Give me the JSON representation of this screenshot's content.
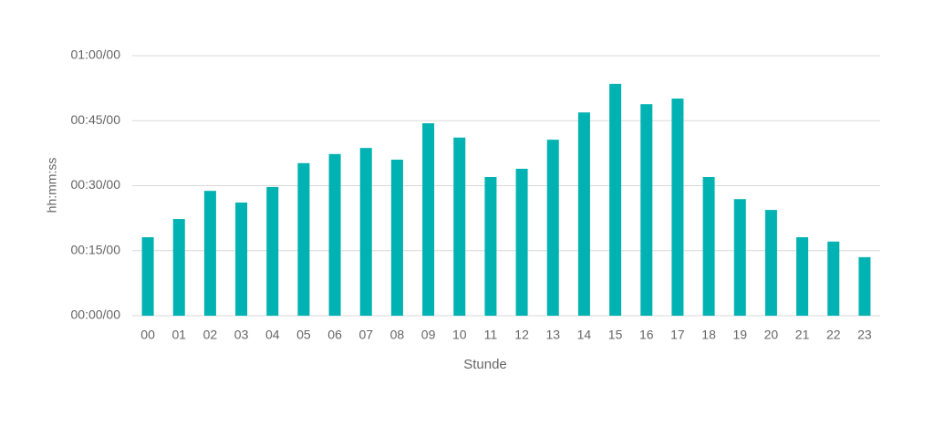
{
  "chart_data": {
    "type": "bar",
    "x_label": "Stunde",
    "y_label": "hh:mm:ss",
    "categories": [
      "00",
      "01",
      "02",
      "03",
      "04",
      "05",
      "06",
      "07",
      "08",
      "09",
      "10",
      "11",
      "12",
      "13",
      "14",
      "15",
      "16",
      "17",
      "18",
      "19",
      "20",
      "21",
      "22",
      "23"
    ],
    "values": [
      18.1,
      22.3,
      28.8,
      26.1,
      29.7,
      35.2,
      37.3,
      38.7,
      36.0,
      44.4,
      41.1,
      32.0,
      33.9,
      40.6,
      46.9,
      53.5,
      48.8,
      50.1,
      32.0,
      26.9,
      24.4,
      18.1,
      17.1,
      13.5
    ],
    "color": "#00b2b2",
    "ylim": [
      0,
      60
    ],
    "yticks": [
      {
        "value": 0,
        "label": "00:00/00"
      },
      {
        "value": 15,
        "label": "00:15/00"
      },
      {
        "value": 30,
        "label": "00:30/00"
      },
      {
        "value": 45,
        "label": "00:45/00"
      },
      {
        "value": 60,
        "label": "01:00/00"
      }
    ],
    "grid": true
  }
}
